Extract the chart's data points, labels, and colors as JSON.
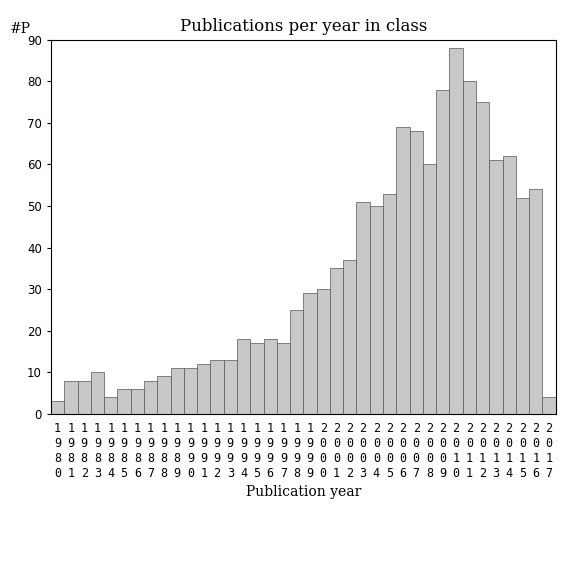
{
  "years": [
    "1980",
    "1981",
    "1982",
    "1983",
    "1984",
    "1985",
    "1986",
    "1987",
    "1988",
    "1989",
    "1990",
    "1991",
    "1992",
    "1993",
    "1994",
    "1995",
    "1996",
    "1997",
    "1998",
    "1999",
    "2000",
    "2001",
    "2002",
    "2003",
    "2004",
    "2005",
    "2006",
    "2007",
    "2008",
    "2009",
    "2010",
    "2011",
    "2012",
    "2013",
    "2014",
    "2015",
    "2016",
    "2017"
  ],
  "values": [
    3,
    8,
    8,
    10,
    4,
    6,
    6,
    8,
    9,
    11,
    11,
    12,
    13,
    13,
    18,
    17,
    18,
    17,
    25,
    29,
    30,
    35,
    37,
    51,
    50,
    53,
    69,
    68,
    60,
    78,
    88,
    80,
    75,
    61,
    62,
    52,
    54,
    4
  ],
  "bar_color": "#c8c8c8",
  "bar_edgecolor": "#555555",
  "title": "Publications per year in class",
  "xlabel": "Publication year",
  "ylabel": "#P",
  "ylim": [
    0,
    90
  ],
  "yticks": [
    0,
    10,
    20,
    30,
    40,
    50,
    60,
    70,
    80,
    90
  ],
  "background_color": "#ffffff",
  "title_fontsize": 12,
  "label_fontsize": 10,
  "tick_fontsize": 8.5
}
